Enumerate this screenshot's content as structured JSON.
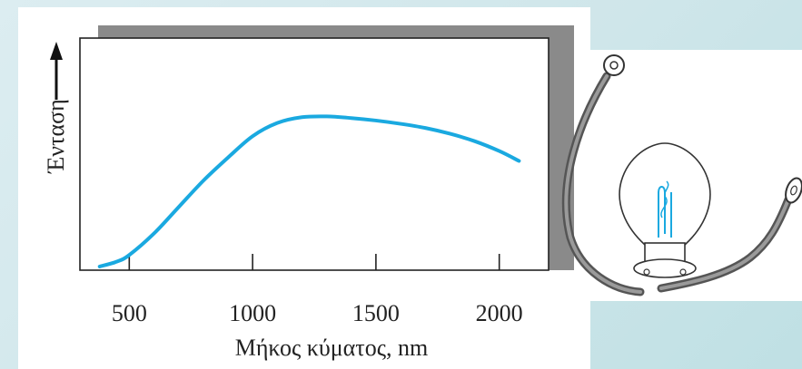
{
  "chart_data": {
    "type": "line",
    "xlabel": "Μήκος κύματος, nm",
    "ylabel": "Ένταση",
    "xticks": [
      500,
      1000,
      1500,
      2000
    ],
    "xlim": [
      300,
      2200
    ],
    "ylim": [
      0,
      1
    ],
    "grid": false,
    "series": [
      {
        "color": "#1aa9e0",
        "x": [
          380,
          450,
          500,
          600,
          700,
          800,
          900,
          1000,
          1100,
          1200,
          1300,
          1400,
          1500,
          1600,
          1700,
          1800,
          1900,
          2000,
          2080
        ],
        "y": [
          0.0,
          0.03,
          0.07,
          0.2,
          0.36,
          0.52,
          0.66,
          0.79,
          0.87,
          0.905,
          0.91,
          0.9,
          0.885,
          0.865,
          0.84,
          0.805,
          0.76,
          0.7,
          0.64
        ]
      }
    ]
  },
  "illustration": {
    "name": "incandescent-bulb-with-wires"
  }
}
